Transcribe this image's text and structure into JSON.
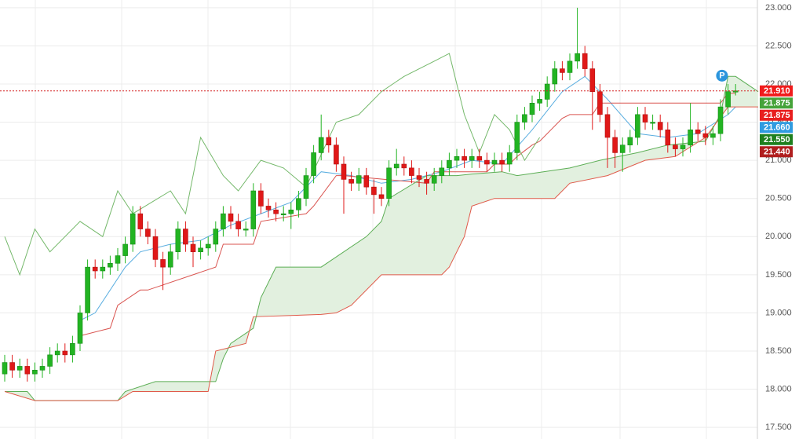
{
  "chart_data": {
    "type": "candlestick",
    "ylim": [
      17.45,
      23.05
    ],
    "yticks": [
      {
        "value": 17.5,
        "label": "17.500"
      },
      {
        "value": 18,
        "label": "18.000"
      },
      {
        "value": 18.5,
        "label": "18.500"
      },
      {
        "value": 19,
        "label": "19.000"
      },
      {
        "value": 19.5,
        "label": "19.500"
      },
      {
        "value": 20,
        "label": "20.000"
      },
      {
        "value": 20.5,
        "label": "20.500"
      },
      {
        "value": 21,
        "label": "21.000"
      },
      {
        "value": 21.5,
        "label": "21.500"
      },
      {
        "value": 22,
        "label": "22.000"
      },
      {
        "value": 22.5,
        "label": "22.500"
      },
      {
        "value": 23,
        "label": "23.000"
      }
    ],
    "grid": true,
    "up_color": "#22b422",
    "down_color": "#e01818",
    "candles": {
      "open": [
        18.2,
        18.35,
        18.25,
        18.3,
        18.2,
        18.25,
        18.3,
        18.45,
        18.5,
        18.45,
        18.6,
        19.0,
        19.6,
        19.55,
        19.6,
        19.65,
        19.75,
        19.9,
        20.3,
        20.1,
        20.0,
        19.7,
        19.6,
        19.8,
        20.1,
        19.9,
        19.8,
        19.85,
        19.9,
        20.1,
        20.3,
        20.2,
        20.1,
        20.1,
        20.6,
        20.4,
        20.35,
        20.3,
        20.3,
        20.35,
        20.5,
        20.8,
        21.1,
        21.3,
        21.2,
        20.95,
        20.75,
        20.7,
        20.8,
        20.65,
        20.55,
        20.5,
        20.9,
        20.95,
        20.9,
        20.8,
        20.75,
        20.7,
        20.8,
        20.9,
        21.0,
        21.05,
        21.0,
        21.05,
        21.0,
        20.95,
        21.0,
        20.95,
        21.1,
        21.5,
        21.6,
        21.75,
        21.8,
        22.0,
        22.2,
        22.15,
        22.3,
        22.4,
        22.2,
        21.9,
        21.6,
        21.3,
        21.1,
        21.2,
        21.3,
        21.6,
        21.5,
        21.5,
        21.4,
        21.2,
        21.15,
        21.2,
        21.4,
        21.35,
        21.3,
        21.35,
        21.7,
        21.9
      ],
      "high": [
        18.45,
        18.45,
        18.4,
        18.4,
        18.35,
        18.4,
        18.55,
        18.6,
        18.6,
        18.7,
        19.1,
        19.7,
        19.7,
        19.7,
        19.75,
        19.85,
        20.0,
        20.4,
        20.4,
        20.2,
        20.1,
        19.8,
        19.9,
        20.2,
        20.2,
        20.0,
        19.95,
        20.0,
        20.2,
        20.4,
        20.4,
        20.3,
        20.2,
        20.7,
        20.7,
        20.5,
        20.45,
        20.4,
        20.45,
        20.6,
        20.9,
        21.2,
        21.6,
        21.4,
        21.3,
        21.05,
        20.85,
        20.9,
        20.9,
        20.75,
        20.65,
        21.0,
        21.15,
        21.05,
        21.0,
        20.9,
        20.85,
        20.9,
        21.0,
        21.1,
        21.15,
        21.15,
        21.15,
        21.15,
        21.1,
        21.1,
        21.1,
        21.2,
        21.6,
        21.7,
        21.85,
        21.9,
        22.1,
        22.3,
        22.3,
        22.4,
        23.0,
        22.5,
        22.3,
        22.0,
        21.7,
        21.4,
        21.3,
        21.4,
        21.7,
        21.7,
        21.6,
        21.6,
        21.5,
        21.3,
        21.3,
        21.75,
        21.5,
        21.45,
        21.45,
        21.8,
        22.0,
        22.0
      ],
      "low": [
        18.1,
        18.15,
        18.15,
        18.1,
        18.1,
        18.15,
        18.2,
        18.35,
        18.35,
        18.35,
        18.5,
        18.9,
        19.45,
        19.45,
        19.5,
        19.55,
        19.65,
        19.8,
        20.0,
        19.9,
        19.6,
        19.3,
        19.5,
        19.7,
        19.8,
        19.6,
        19.7,
        19.75,
        19.8,
        20.0,
        20.1,
        20.0,
        20.0,
        20.0,
        20.3,
        20.25,
        20.2,
        20.2,
        20.1,
        20.25,
        20.4,
        20.7,
        21.0,
        21.1,
        20.85,
        20.3,
        20.6,
        20.6,
        20.55,
        20.3,
        20.4,
        20.4,
        20.8,
        20.8,
        20.7,
        20.65,
        20.55,
        20.6,
        20.7,
        20.8,
        20.9,
        20.9,
        20.9,
        20.9,
        20.85,
        20.85,
        20.85,
        20.85,
        21.0,
        21.4,
        21.5,
        21.65,
        21.7,
        21.9,
        22.05,
        22.05,
        22.2,
        22.1,
        21.4,
        21.5,
        20.9,
        20.9,
        20.85,
        21.1,
        21.2,
        21.4,
        21.4,
        21.3,
        21.1,
        21.05,
        21.05,
        21.1,
        21.25,
        21.2,
        21.2,
        21.25,
        21.6,
        21.85
      ],
      "close": [
        18.35,
        18.25,
        18.3,
        18.2,
        18.25,
        18.3,
        18.45,
        18.5,
        18.45,
        18.6,
        19.0,
        19.6,
        19.55,
        19.6,
        19.65,
        19.75,
        19.9,
        20.3,
        20.1,
        20.0,
        19.7,
        19.6,
        19.8,
        20.1,
        19.9,
        19.8,
        19.85,
        19.9,
        20.1,
        20.3,
        20.2,
        20.1,
        20.1,
        20.6,
        20.4,
        20.35,
        20.3,
        20.3,
        20.35,
        20.5,
        20.8,
        21.1,
        21.3,
        21.2,
        20.95,
        20.75,
        20.7,
        20.8,
        20.65,
        20.55,
        20.5,
        20.9,
        20.95,
        20.9,
        20.8,
        20.75,
        20.7,
        20.8,
        20.9,
        21.0,
        21.05,
        21.0,
        21.05,
        21.0,
        20.95,
        21.0,
        20.95,
        21.1,
        21.5,
        21.6,
        21.75,
        21.8,
        22.0,
        22.2,
        22.15,
        22.3,
        22.4,
        22.2,
        21.9,
        21.6,
        21.3,
        21.1,
        21.2,
        21.3,
        21.6,
        21.5,
        21.5,
        21.4,
        21.2,
        21.15,
        21.2,
        21.4,
        21.35,
        21.3,
        21.35,
        21.7,
        21.9,
        21.91
      ]
    },
    "cloud_color": "#e2f0df",
    "lines": [
      {
        "color": "#5aaee0",
        "x": [
          10,
          12,
          16,
          18,
          22,
          26,
          30,
          34,
          38,
          42,
          46,
          50,
          54,
          58,
          62,
          66,
          70,
          74,
          77,
          80,
          84,
          88,
          92,
          96,
          97
        ],
        "values": [
          18.9,
          19.0,
          19.6,
          19.8,
          19.9,
          19.95,
          20.15,
          20.3,
          20.45,
          20.85,
          20.8,
          20.7,
          20.75,
          20.85,
          21.0,
          20.95,
          21.4,
          21.9,
          22.1,
          21.8,
          21.35,
          21.3,
          21.35,
          21.6,
          21.7
        ]
      },
      {
        "color": "#d9534f",
        "x": [
          10,
          14,
          15,
          18,
          19,
          28,
          29,
          33,
          34,
          40,
          41,
          44,
          45,
          56,
          57,
          64,
          65,
          67,
          68,
          70,
          71,
          74,
          75,
          78,
          79,
          95,
          96,
          97
        ],
        "values": [
          18.7,
          18.8,
          19.1,
          19.3,
          19.3,
          19.6,
          19.9,
          19.9,
          20.2,
          20.3,
          20.4,
          20.8,
          20.8,
          20.7,
          20.85,
          20.85,
          20.95,
          20.95,
          21.05,
          21.2,
          21.25,
          21.55,
          21.6,
          21.6,
          21.75,
          21.75,
          21.88,
          21.88
        ]
      },
      {
        "color": "#74b86a",
        "x": [
          0,
          2,
          4,
          6,
          10,
          13,
          15,
          17,
          22,
          24,
          26,
          29,
          31,
          34,
          37,
          40,
          44,
          47,
          50,
          53,
          57,
          59,
          61,
          63,
          65,
          67,
          69,
          71
        ],
        "values": [
          20.0,
          19.5,
          20.1,
          19.8,
          20.2,
          20.0,
          20.6,
          20.3,
          20.6,
          20.3,
          21.3,
          20.8,
          20.6,
          21.0,
          20.9,
          20.65,
          21.5,
          21.6,
          21.9,
          22.1,
          22.3,
          22.4,
          21.6,
          21.1,
          21.6,
          21.4,
          21.0,
          21.3
        ]
      },
      {
        "color": "#5cae55",
        "cloud": "upper",
        "x": [
          0,
          3,
          4,
          15,
          16,
          20,
          28,
          29,
          30,
          33,
          34,
          36,
          42,
          48,
          50,
          51,
          56,
          60,
          62,
          66,
          68,
          75,
          79,
          84,
          88,
          93,
          95,
          96,
          97,
          100
        ],
        "values": [
          17.97,
          17.97,
          17.85,
          17.85,
          17.97,
          18.1,
          18.1,
          18.4,
          18.6,
          18.8,
          19.2,
          19.6,
          19.6,
          20.0,
          20.2,
          20.5,
          20.8,
          20.8,
          20.82,
          20.85,
          20.8,
          20.9,
          21.0,
          21.1,
          21.2,
          21.25,
          21.6,
          22.1,
          22.1,
          21.9
        ]
      },
      {
        "color": "#e05a4a",
        "cloud": "lower",
        "x": [
          0,
          4,
          15,
          17,
          27,
          28,
          32,
          33,
          42,
          44,
          46,
          50,
          58,
          59,
          61,
          62,
          65,
          73,
          75,
          80,
          85,
          89,
          93,
          96,
          100
        ],
        "values": [
          17.97,
          17.85,
          17.85,
          17.97,
          17.97,
          18.5,
          18.6,
          18.95,
          18.98,
          19.0,
          19.1,
          19.5,
          19.5,
          19.6,
          20.0,
          20.4,
          20.5,
          20.5,
          20.7,
          20.8,
          21.0,
          21.05,
          21.3,
          21.7,
          21.7
        ]
      }
    ],
    "price_badges": [
      {
        "value": 21.91,
        "label": "21.910",
        "color": "#f01c1c"
      },
      {
        "value": 21.875,
        "label": "21.875",
        "color": "#46a33a"
      },
      {
        "value": 21.875,
        "label": "21.875",
        "color": "#e81e1e"
      },
      {
        "value": 21.66,
        "label": "21.660",
        "color": "#2f9be0"
      },
      {
        "value": 21.55,
        "label": "21.550",
        "color": "#1e7f1e"
      },
      {
        "value": 21.44,
        "label": "21.440",
        "color": "#b01e1e"
      }
    ],
    "last_price_line": true,
    "annotations": [
      {
        "text": "P",
        "x": 95.2,
        "y": 22.11,
        "color": "#2b95dd"
      }
    ]
  }
}
